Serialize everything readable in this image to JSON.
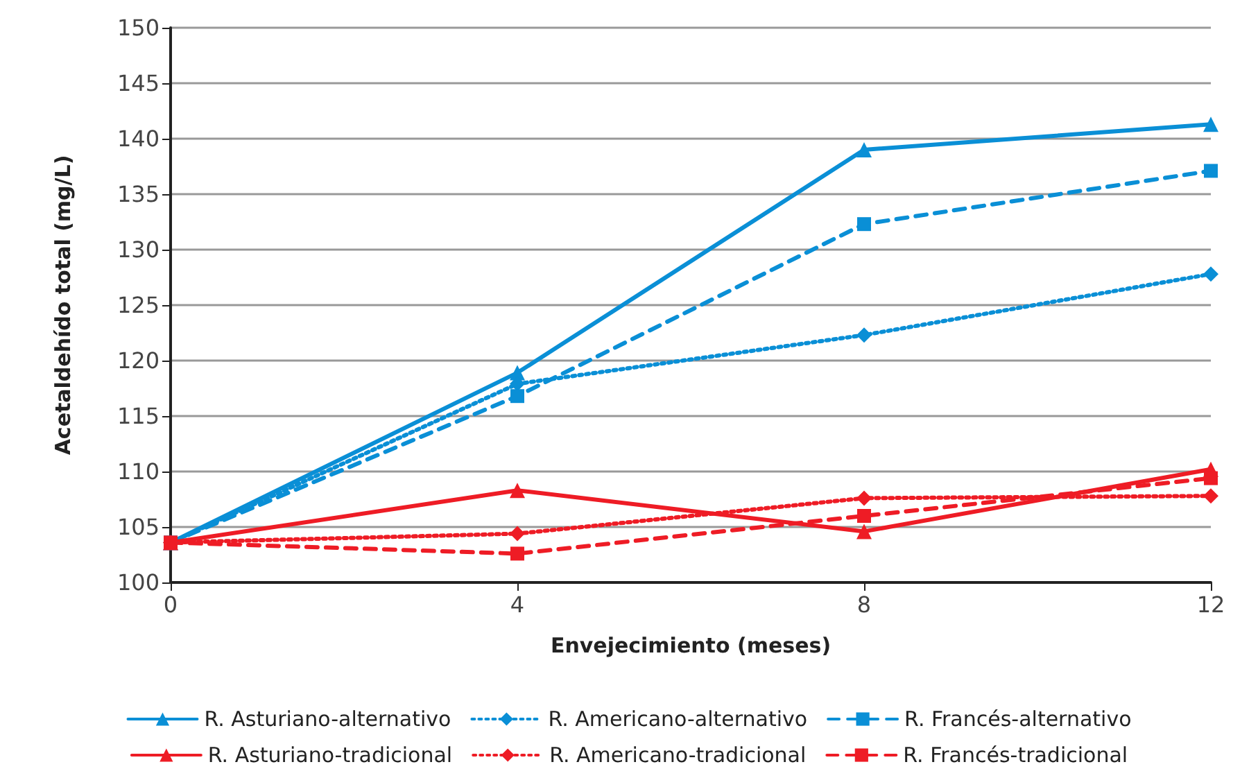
{
  "chart_data": {
    "type": "line",
    "xlabel": "Envejecimiento (meses)",
    "ylabel": "Acetaldehído total (mg/L)",
    "x": [
      0,
      4,
      8,
      12
    ],
    "xlim": [
      0,
      12
    ],
    "xticks": [
      0,
      4,
      8,
      12
    ],
    "ylim": [
      100,
      150
    ],
    "yticks": [
      100,
      105,
      110,
      115,
      120,
      125,
      130,
      135,
      140,
      145,
      150
    ],
    "grid": "y",
    "legend": "bottom",
    "series": [
      {
        "name": "R. Asturiano-alternativo",
        "color": "#0a8fd6",
        "marker": "triangle",
        "line_style": "solid",
        "values": [
          103.6,
          118.9,
          139.0,
          141.3
        ]
      },
      {
        "name": "R. Americano-alternativo",
        "color": "#0a8fd6",
        "marker": "diamond",
        "line_style": "dotted",
        "values": [
          103.6,
          117.9,
          122.3,
          127.8
        ]
      },
      {
        "name": "R. Francés-alternativo",
        "color": "#0a8fd6",
        "marker": "square",
        "line_style": "dashed",
        "values": [
          103.6,
          116.8,
          132.3,
          137.1
        ]
      },
      {
        "name": "R. Asturiano-tradicional",
        "color": "#ee1c25",
        "marker": "triangle",
        "line_style": "solid",
        "values": [
          103.6,
          108.3,
          104.6,
          110.2
        ]
      },
      {
        "name": "R. Americano-tradicional",
        "color": "#ee1c25",
        "marker": "diamond",
        "line_style": "dotted",
        "values": [
          103.6,
          104.4,
          107.6,
          107.8
        ]
      },
      {
        "name": "R. Francés-tradicional",
        "color": "#ee1c25",
        "marker": "square",
        "line_style": "dashed",
        "values": [
          103.6,
          102.6,
          106.0,
          109.4
        ]
      }
    ]
  }
}
